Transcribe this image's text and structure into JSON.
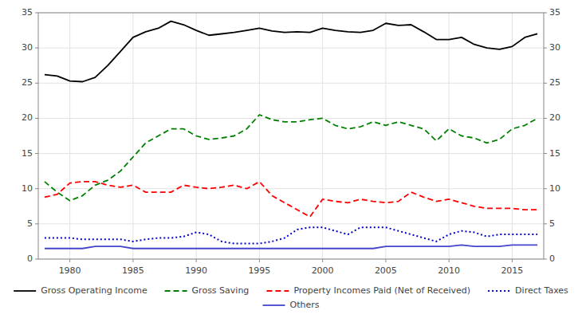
{
  "chart_data": {
    "type": "line",
    "x": [
      1978,
      1979,
      1980,
      1981,
      1982,
      1983,
      1984,
      1985,
      1986,
      1987,
      1988,
      1989,
      1990,
      1991,
      1992,
      1993,
      1994,
      1995,
      1996,
      1997,
      1998,
      1999,
      2000,
      2001,
      2002,
      2003,
      2004,
      2005,
      2006,
      2007,
      2008,
      2009,
      2010,
      2011,
      2012,
      2013,
      2014,
      2015,
      2016,
      2017
    ],
    "series": [
      {
        "name": "Gross Operating Income",
        "color": "#000000",
        "line_style": "solid",
        "values": [
          26.2,
          26.0,
          25.3,
          25.2,
          25.8,
          27.5,
          29.5,
          31.5,
          32.3,
          32.8,
          33.8,
          33.3,
          32.5,
          31.8,
          32.0,
          32.2,
          32.5,
          32.8,
          32.4,
          32.2,
          32.3,
          32.2,
          32.8,
          32.5,
          32.3,
          32.2,
          32.5,
          33.5,
          33.2,
          33.3,
          32.3,
          31.2,
          31.2,
          31.5,
          30.5,
          30.0,
          29.8,
          30.2,
          31.5,
          32.0
        ]
      },
      {
        "name": "Gross Saving",
        "color": "#008000",
        "line_style": "dashed",
        "values": [
          11.0,
          9.5,
          8.3,
          9.0,
          10.5,
          11.2,
          12.5,
          14.5,
          16.5,
          17.5,
          18.5,
          18.5,
          17.5,
          17.0,
          17.2,
          17.5,
          18.5,
          20.5,
          19.8,
          19.5,
          19.5,
          19.8,
          20.0,
          19.0,
          18.5,
          18.8,
          19.5,
          19.0,
          19.5,
          19.0,
          18.5,
          16.8,
          18.5,
          17.5,
          17.2,
          16.5,
          17.0,
          18.5,
          19.0,
          20.0
        ]
      },
      {
        "name": "Property Incomes Paid (Net of Received)",
        "color": "#ff0000",
        "line_style": "dashed",
        "values": [
          8.8,
          9.2,
          10.8,
          11.0,
          11.0,
          10.5,
          10.2,
          10.5,
          9.5,
          9.5,
          9.5,
          10.5,
          10.2,
          10.0,
          10.2,
          10.5,
          10.0,
          11.0,
          9.0,
          8.0,
          7.0,
          6.0,
          8.5,
          8.2,
          8.0,
          8.5,
          8.2,
          8.0,
          8.2,
          9.5,
          8.8,
          8.2,
          8.5,
          8.0,
          7.5,
          7.2,
          7.2,
          7.2,
          7.0,
          7.0
        ]
      },
      {
        "name": "Direct Taxes",
        "color": "#0000cc",
        "line_style": "dotted",
        "values": [
          3.0,
          3.0,
          3.0,
          2.8,
          2.8,
          2.8,
          2.8,
          2.5,
          2.8,
          3.0,
          3.0,
          3.2,
          3.8,
          3.5,
          2.5,
          2.2,
          2.2,
          2.2,
          2.5,
          3.0,
          4.2,
          4.5,
          4.5,
          4.0,
          3.5,
          4.5,
          4.5,
          4.5,
          4.0,
          3.5,
          3.0,
          2.5,
          3.5,
          4.0,
          3.8,
          3.2,
          3.5,
          3.5,
          3.5,
          3.5
        ]
      },
      {
        "name": "Others",
        "color": "#4444cc",
        "line_style": "solid",
        "values": [
          1.5,
          1.5,
          1.5,
          1.5,
          1.8,
          1.8,
          1.8,
          1.5,
          1.5,
          1.5,
          1.5,
          1.5,
          1.5,
          1.5,
          1.5,
          1.5,
          1.5,
          1.5,
          1.5,
          1.5,
          1.5,
          1.5,
          1.5,
          1.5,
          1.5,
          1.5,
          1.5,
          1.8,
          1.8,
          1.8,
          1.8,
          1.8,
          1.8,
          2.0,
          1.8,
          1.8,
          1.8,
          2.0,
          2.0,
          2.0
        ]
      }
    ],
    "xlim": [
      1977.5,
      2017.5
    ],
    "xticks": [
      1980,
      1985,
      1990,
      1995,
      2000,
      2005,
      2010,
      2015
    ],
    "ylim": [
      0,
      35
    ],
    "yticks": [
      0,
      5,
      10,
      15,
      20,
      25,
      30,
      35
    ],
    "y2lim": [
      0,
      35
    ],
    "y2ticks": [
      0,
      5,
      10,
      15,
      20,
      25,
      30,
      35
    ],
    "grid": true,
    "legend": "bottom"
  }
}
